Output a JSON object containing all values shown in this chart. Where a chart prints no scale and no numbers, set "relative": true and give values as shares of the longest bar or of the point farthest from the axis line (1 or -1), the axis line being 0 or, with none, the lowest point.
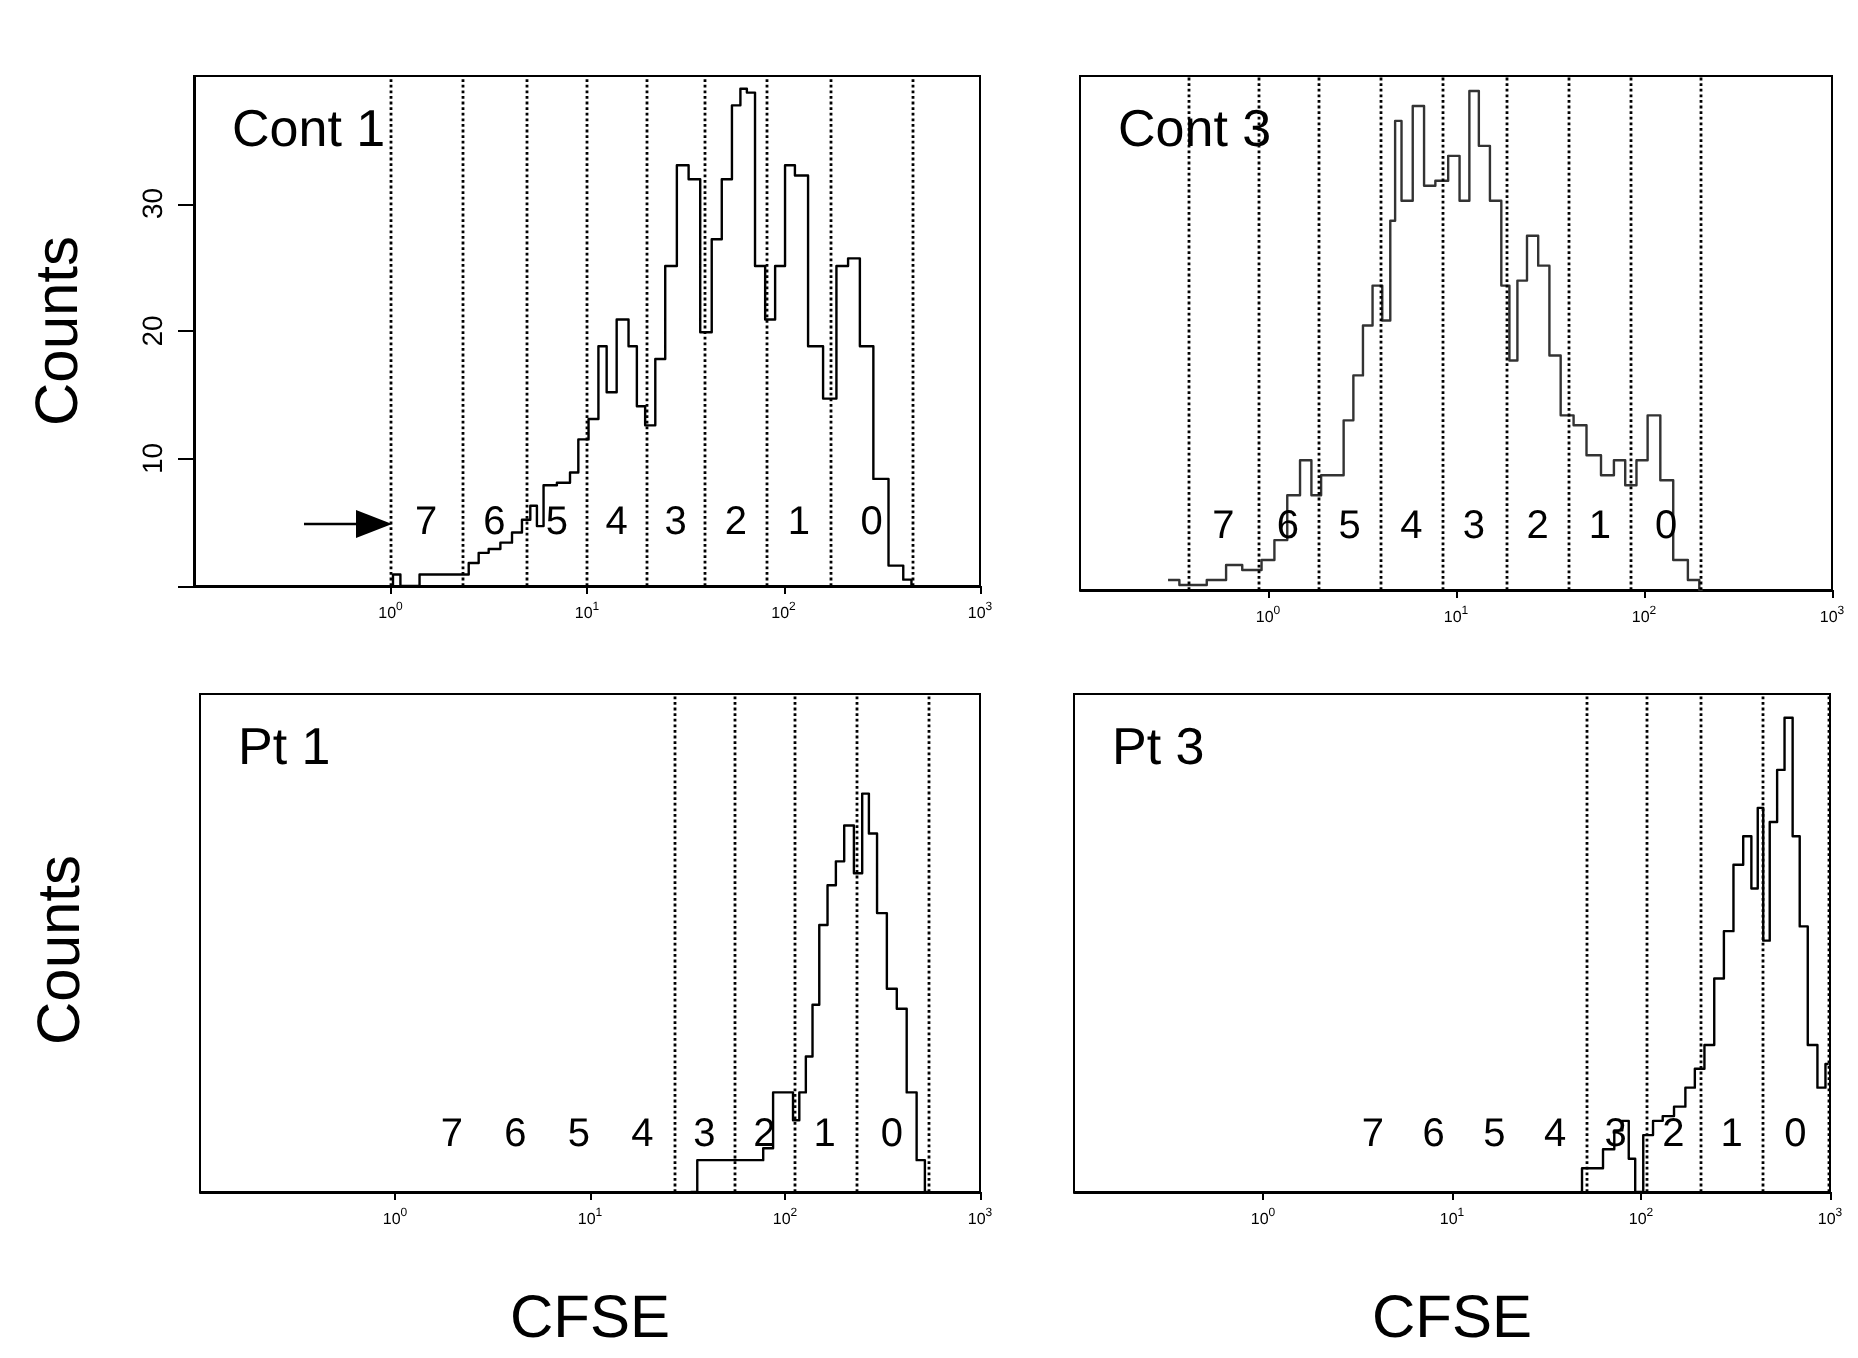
{
  "chart_data": [
    {
      "type": "step",
      "title": "Cont 1",
      "ylabel": "Counts",
      "log": "x",
      "xlim": [
        0.1,
        1000
      ],
      "xticks": [
        {
          "value": 1,
          "label": "10$^{0}$"
        },
        {
          "value": 10,
          "label": "10$^{1}$"
        },
        {
          "value": 100,
          "label": "10$^{2}$"
        },
        {
          "value": 1000,
          "label": "10$^{3}$"
        }
      ],
      "ylim": [
        0,
        40
      ],
      "yticks": [
        {
          "value": 0,
          "label": null
        },
        10,
        20,
        30
      ],
      "series": [
        {
          "color": "#000000",
          "x": [
            1.0,
            1.06,
            1.19,
            1.66,
            2.36,
            2.65,
            2.98,
            3.35,
            3.92,
            4.4,
            4.95,
            5.35,
            5.78,
            6.25,
            7.9,
            8.5,
            9.6,
            10.8,
            12.1,
            13.1,
            15.3,
            17.3,
            18.6,
            21,
            23.6,
            26.5,
            31,
            34.9,
            40.7,
            45.7,
            51.5,
            58,
            62.8,
            67.5,
            76,
            85.6,
            96,
            108,
            121,
            147,
            172,
            201,
            226,
            265,
            310,
            378,
            438,
            458
          ],
          "values": [
            0,
            0.9,
            0,
            0.9,
            0.9,
            1.8,
            2.6,
            2.9,
            3.4,
            4.2,
            5.2,
            6.3,
            4.7,
            7.9,
            8.1,
            8.9,
            11.5,
            13.1,
            18.8,
            15.2,
            20.9,
            18.8,
            14.1,
            12.6,
            17.8,
            25.1,
            33,
            31.9,
            19.9,
            27.2,
            31.9,
            37.7,
            39,
            38.7,
            25.1,
            20.9,
            25.1,
            33,
            32.2,
            18.8,
            14.7,
            25.1,
            25.7,
            18.8,
            8.4,
            1.6,
            0.5,
            0
          ]
        }
      ],
      "ref_lines": [
        {
          "axis": "x",
          "value": 1.0,
          "line_style": "dotted"
        },
        {
          "axis": "x",
          "value": 2.3,
          "line_style": "dotted"
        },
        {
          "axis": "x",
          "value": 4.95,
          "line_style": "dotted"
        },
        {
          "axis": "x",
          "value": 10,
          "line_style": "dotted"
        },
        {
          "axis": "x",
          "value": 20,
          "line_style": "dotted"
        },
        {
          "axis": "x",
          "value": 40,
          "line_style": "dotted"
        },
        {
          "axis": "x",
          "value": 82,
          "line_style": "dotted"
        },
        {
          "axis": "x",
          "value": 175,
          "line_style": "dotted"
        },
        {
          "axis": "x",
          "value": 450,
          "line_style": "dotted"
        }
      ],
      "annotations": [
        "7",
        "6",
        "5",
        "4",
        "3",
        "2",
        "1",
        "0"
      ]
    },
    {
      "type": "step",
      "title": "Cont 3",
      "relative": true,
      "tick_labels": "x",
      "log": "x",
      "xlim": [
        0.1,
        1000
      ],
      "xticks": [
        {
          "value": 1,
          "label": "10$^{0}$"
        },
        {
          "value": 10,
          "label": "10$^{1}$"
        },
        {
          "value": 100,
          "label": "10$^{2}$"
        },
        {
          "value": 1000,
          "label": "10$^{3}$"
        }
      ],
      "series": [
        {
          "color": "#333333",
          "x": [
            0.294,
            0.388,
            0.575,
            0.623,
            0.854,
            1.0,
            1.17,
            1.37,
            1.6,
            1.81,
            2.03,
            2.38,
            2.68,
            3.02,
            3.39,
            3.82,
            4.3,
            4.65,
            4.84,
            5.44,
            6.37,
            7.18,
            8.4,
            9.83,
            11.1,
            12.5,
            14.0,
            16.4,
            18.5,
            20.0,
            22.5,
            25.3,
            29.6,
            33.3,
            39.0,
            45.7,
            53.5,
            65.2,
            73.4,
            86.0,
            96.7,
            113,
            132,
            155,
            189,
            205
          ],
          "values": [
            0.02,
            0.01,
            0.02,
            0.05,
            0.04,
            0.06,
            0.1,
            0.19,
            0.26,
            0.19,
            0.23,
            0.23,
            0.34,
            0.43,
            0.53,
            0.61,
            0.54,
            0.74,
            0.94,
            0.78,
            0.97,
            0.81,
            0.82,
            0.87,
            0.78,
            1,
            0.89,
            0.78,
            0.61,
            0.46,
            0.62,
            0.71,
            0.65,
            0.47,
            0.35,
            0.33,
            0.27,
            0.23,
            0.26,
            0.21,
            0.26,
            0.35,
            0.22,
            0.06,
            0.02,
            0
          ]
        }
      ],
      "ref_lines": [
        {
          "axis": "x",
          "value": 0.38,
          "line_style": "dotted"
        },
        {
          "axis": "x",
          "value": 0.88,
          "line_style": "dotted"
        },
        {
          "axis": "x",
          "value": 1.85,
          "line_style": "dotted"
        },
        {
          "axis": "x",
          "value": 4.0,
          "line_style": "dotted"
        },
        {
          "axis": "x",
          "value": 8.4,
          "line_style": "dotted"
        },
        {
          "axis": "x",
          "value": 18.5,
          "line_style": "dotted"
        },
        {
          "axis": "x",
          "value": 40,
          "line_style": "dotted"
        },
        {
          "axis": "x",
          "value": 85,
          "line_style": "dotted"
        },
        {
          "axis": "x",
          "value": 202,
          "line_style": "dotted"
        }
      ],
      "annotations": [
        "7",
        "6",
        "5",
        "4",
        "3",
        "2",
        "1",
        "0"
      ]
    },
    {
      "type": "step",
      "title": "Pt 1",
      "ylabel": "Counts",
      "xlabel": "CFSE",
      "relative": true,
      "tick_labels": "x",
      "log": "x",
      "xlim": [
        0.1,
        1000
      ],
      "xticks": [
        {
          "value": 1,
          "label": "10$^{0}$"
        },
        {
          "value": 10,
          "label": "10$^{1}$"
        },
        {
          "value": 100,
          "label": "10$^{2}$"
        },
        {
          "value": 1000,
          "label": "10$^{3}$"
        }
      ],
      "series": [
        {
          "color": "#000000",
          "x": [
            32.8,
            38.4,
            61.2,
            71.5,
            83.6,
            90.3,
            106,
            114,
            123,
            133,
            144,
            156,
            175,
            190,
            213,
            239,
            259,
            280,
            314,
            353,
            397,
            446,
            502,
            542
          ],
          "values": [
            0,
            0.08,
            0.08,
            0.08,
            0.11,
            0.25,
            0.25,
            0.18,
            0.25,
            0.34,
            0.47,
            0.67,
            0.77,
            0.83,
            0.92,
            0.8,
            1,
            0.9,
            0.7,
            0.51,
            0.46,
            0.25,
            0.08,
            0
          ]
        }
      ],
      "ref_lines": [
        {
          "axis": "x",
          "value": 27,
          "line_style": "dotted"
        },
        {
          "axis": "x",
          "value": 55.3,
          "line_style": "dotted"
        },
        {
          "axis": "x",
          "value": 111,
          "line_style": "dotted"
        },
        {
          "axis": "x",
          "value": 230,
          "line_style": "dotted"
        },
        {
          "axis": "x",
          "value": 542,
          "line_style": "dotted"
        }
      ],
      "annotations": [
        "7",
        "6",
        "5",
        "4",
        "3",
        "2",
        "1",
        "0"
      ]
    },
    {
      "type": "step",
      "title": "Pt 3",
      "xlabel": "CFSE",
      "relative": true,
      "tick_labels": "x",
      "log": "x",
      "xlim": [
        0.1,
        1000
      ],
      "xticks": [
        {
          "value": 1,
          "label": "10$^{0}$"
        },
        {
          "value": 10,
          "label": "10$^{1}$"
        },
        {
          "value": 100,
          "label": "10$^{2}$"
        },
        {
          "value": 1000,
          "label": "10$^{3}$"
        }
      ],
      "series": [
        {
          "color": "#000000",
          "x": [
            47.8,
            49.7,
            58.2,
            68.1,
            76.6,
            82.8,
            89.6,
            96.9,
            109,
            123,
            138,
            162,
            182,
            204,
            230,
            259,
            291,
            327,
            369,
            399,
            431,
            456,
            505,
            546,
            605,
            665,
            719,
            809,
            910,
            984
          ],
          "values": [
            0,
            0.05,
            0.05,
            0.09,
            0.13,
            0.15,
            0.07,
            0,
            0.12,
            0.15,
            0.16,
            0.18,
            0.22,
            0.26,
            0.31,
            0.45,
            0.55,
            0.69,
            0.75,
            0.64,
            0.81,
            0.53,
            0.78,
            0.89,
            1,
            0.75,
            0.56,
            0.31,
            0.22,
            0.27
          ]
        }
      ],
      "ref_lines": [
        {
          "axis": "x",
          "value": 50.9,
          "line_style": "dotted"
        },
        {
          "axis": "x",
          "value": 106,
          "line_style": "dotted"
        },
        {
          "axis": "x",
          "value": 208,
          "line_style": "dotted"
        },
        {
          "axis": "x",
          "value": 438,
          "line_style": "dotted"
        },
        {
          "axis": "x",
          "value": 984,
          "line_style": "dotted"
        }
      ],
      "annotations": [
        "7",
        "6",
        "5",
        "4",
        "3",
        "2",
        "1",
        "0"
      ]
    }
  ]
}
